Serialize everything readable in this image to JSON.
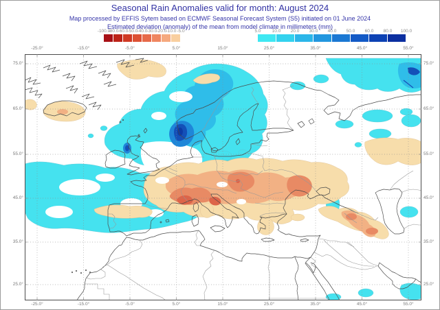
{
  "header": {
    "title": "Seasonal Rain Anomalies valid for month: August 2024",
    "subtitle1": "Map processed by EFFIS Sytem based on ECMWF Seasonal Forecast System (S5) initiated on 01 June 2024",
    "subtitle2": "Estimated deviation (anomaly) of the mean from model climate in millimeters (mm)",
    "text_color": "#3232a4"
  },
  "colorbar": {
    "negative": {
      "tick_labels": [
        "-100.0",
        "-80.0",
        "-60.0",
        "-50.0",
        "-40.0",
        "-30.0",
        "-20.0",
        "-10.0",
        "-5.0"
      ],
      "segment_colors": [
        "#a81016",
        "#bd2318",
        "#d03a24",
        "#dd5134",
        "#e76a49",
        "#ef8660",
        "#f5a97e",
        "#f9cf9f"
      ]
    },
    "positive": {
      "tick_labels": [
        "5.0",
        "10.0",
        "20.0",
        "30.0",
        "40.0",
        "50.0",
        "60.0",
        "80.0",
        "100.0"
      ],
      "segment_colors": [
        "#3fe8f2",
        "#33d2ee",
        "#2bb6e9",
        "#2297df",
        "#1b78d3",
        "#135ac6",
        "#0d42b4",
        "#0b2fa0"
      ]
    },
    "units": "mm"
  },
  "map_axes": {
    "lon_labels": [
      "-25.0°",
      "-15.0°",
      "-5.0°",
      "5.0°",
      "15.0°",
      "25.0°",
      "35.0°",
      "45.0°",
      "55.0°"
    ],
    "lat_labels": [
      "75.0°",
      "65.0°",
      "55.0°",
      "45.0°",
      "35.0°",
      "25.0°"
    ]
  },
  "map_content": {
    "depicted_anomalies": [
      "Positive (wet) anomaly +5 to +50 mm over North Atlantic, North Sea and Norwegian Sea, darkest core (+50 to +100 mm) off SW Norway and N Scotland",
      "Positive anomaly +5 to +30 mm along Barents Sea / Arctic Russia, strongest at top-right corner",
      "Small positive patches: Baltic coast, E Black Sea, Caspian edge, Persian Gulf / Red Sea at bottom",
      "Negative (dry) anomaly -5 to -40 mm over central/eastern Europe from France to Ukraine, driest (-30 to -50 mm) over Alps, Pannonia and Carpathians",
      "Negative anomaly -5 to -10 mm over Iceland, E Greenland margin, N Scotland and N Spain",
      "Negative anomaly -5 to -30 mm over Caucasus / NW Iran",
      "Negative band -5 to -10 mm over E Russia near 55°N"
    ]
  }
}
